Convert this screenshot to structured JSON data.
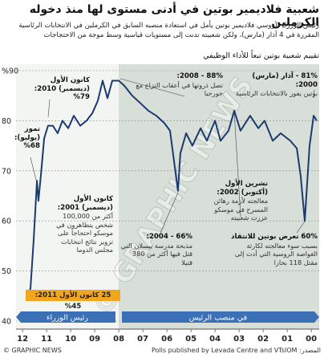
{
  "chart_data": {
    "type": "line",
    "title": "شعبية فلاديمير بوتين في أدنى مستوى لها منذ دخوله الكرملين",
    "subtitle": "رئيس الوزراء الروسي فلاديمير بوتين يأمل في استعادة منصبه السابق في الكرملين في الانتخابات الرئاسية المقررة في 4 آذار (مارس)، ولكن شعبيته تدنت إلى مستويات قياسية وسط موجة من الاحتجاجات",
    "chart_label": "تقييم شعبية بوتين تبعاً للأداء الوظيفي",
    "x": [
      1999.77,
      1999.9,
      2000.07,
      2000.27,
      2000.44,
      2000.6,
      2000.87,
      2001.27,
      2001.6,
      2001.94,
      2002.2,
      2002.54,
      2002.94,
      2003.2,
      2003.44,
      2003.77,
      2004.0,
      2004.34,
      2004.6,
      2004.94,
      2005.2,
      2005.44,
      2005.54,
      2005.87,
      2006.1,
      2006.44,
      2006.77,
      2007.1,
      2007.44,
      2007.77,
      2008.0,
      2008.27,
      2008.47,
      2008.67,
      2008.87,
      2009.1,
      2009.34,
      2009.6,
      2009.87,
      2010.1,
      2010.34,
      2010.54,
      2010.74,
      2010.94,
      2011.1,
      2011.24,
      2011.34,
      2011.4,
      2011.54,
      2011.67,
      2011.8
    ],
    "series": [
      {
        "color": "#1b3a6e",
        "values": [
          80,
          81,
          75,
          60,
          69,
          74.5,
          76,
          77.5,
          76,
          80,
          78.5,
          81,
          78,
          82,
          78,
          76,
          80,
          76,
          78.5,
          75,
          77.5,
          73.5,
          66,
          78,
          79.5,
          81,
          82,
          83.5,
          85,
          87,
          88,
          88,
          84.5,
          88,
          84,
          81.5,
          80,
          79,
          81,
          78.5,
          80,
          77.5,
          79,
          79,
          76.5,
          69,
          64,
          68,
          56,
          46.5,
          45
        ]
      }
    ],
    "xlim": [
      2012.27,
      1999.67
    ],
    "xticks": [
      {
        "value": 2012,
        "label": "12"
      },
      {
        "value": 2011,
        "label": "11"
      },
      {
        "value": 2010,
        "label": "10"
      },
      {
        "value": 2009,
        "label": "09"
      },
      {
        "value": 2008,
        "label": "08"
      },
      {
        "value": 2007,
        "label": "07"
      },
      {
        "value": 2006,
        "label": "06"
      },
      {
        "value": 2005,
        "label": "05"
      },
      {
        "value": 2004,
        "label": "04"
      },
      {
        "value": 2003,
        "label": "03"
      },
      {
        "value": 2002,
        "label": "02"
      },
      {
        "value": 2001,
        "label": "01"
      },
      {
        "value": 2000,
        "label": "00"
      }
    ],
    "ylim": [
      40,
      90
    ],
    "yticks": [
      40,
      50,
      60,
      70,
      80,
      {
        "value": 90,
        "label": "%90"
      }
    ],
    "grid": true,
    "annotations": [
      {
        "head": "81% - آذار (مارس) 2000:",
        "text": "بوتين يفوز بالانتخابات الرئاسية"
      },
      {
        "head": "88% - 2008:",
        "text": "تصل ذروتها في أعقاب النزاع مع جورجيا"
      },
      {
        "head": "كانون الأول (ديسمبر) 2010: 79%",
        "text": ""
      },
      {
        "head": "تموز (يوليو): 68%",
        "text": ""
      },
      {
        "head": "كانون الأول (ديسمبر) 2001:",
        "text": "أكثر من 100,000 شخص يتظاهرون في موسكو احتجاجاً على تزوير نتائج انتخابات مجلس الدوما"
      },
      {
        "head": "تشرين الأول (أكتوبر) 2002:",
        "text": "معالجته لأزمة رهائن المسرح في موسكو عززت شعبيته"
      },
      {
        "head": "66% - 2004:",
        "text": "مذبحة مدرسة بيسلان التي قتل فيها أكثر من 380 قتيلا"
      },
      {
        "head": "60% تعرض بوتين للانتقاد",
        "text": "بسبب سوء معالجته لكارثة الغواصة الروسية التي أدت إلى مقتل 118 بحارا"
      }
    ],
    "low_label": "25 كانون الأول 2011: 45%",
    "eras": [
      "رئيس الوزراء",
      "في منصب الرئيس"
    ],
    "watermark": "© GRAPHIC NEWS",
    "credit": "© GRAPHIC NEWS",
    "source": "المصدر: Polls published by Levada Centre and VTsIOM"
  }
}
